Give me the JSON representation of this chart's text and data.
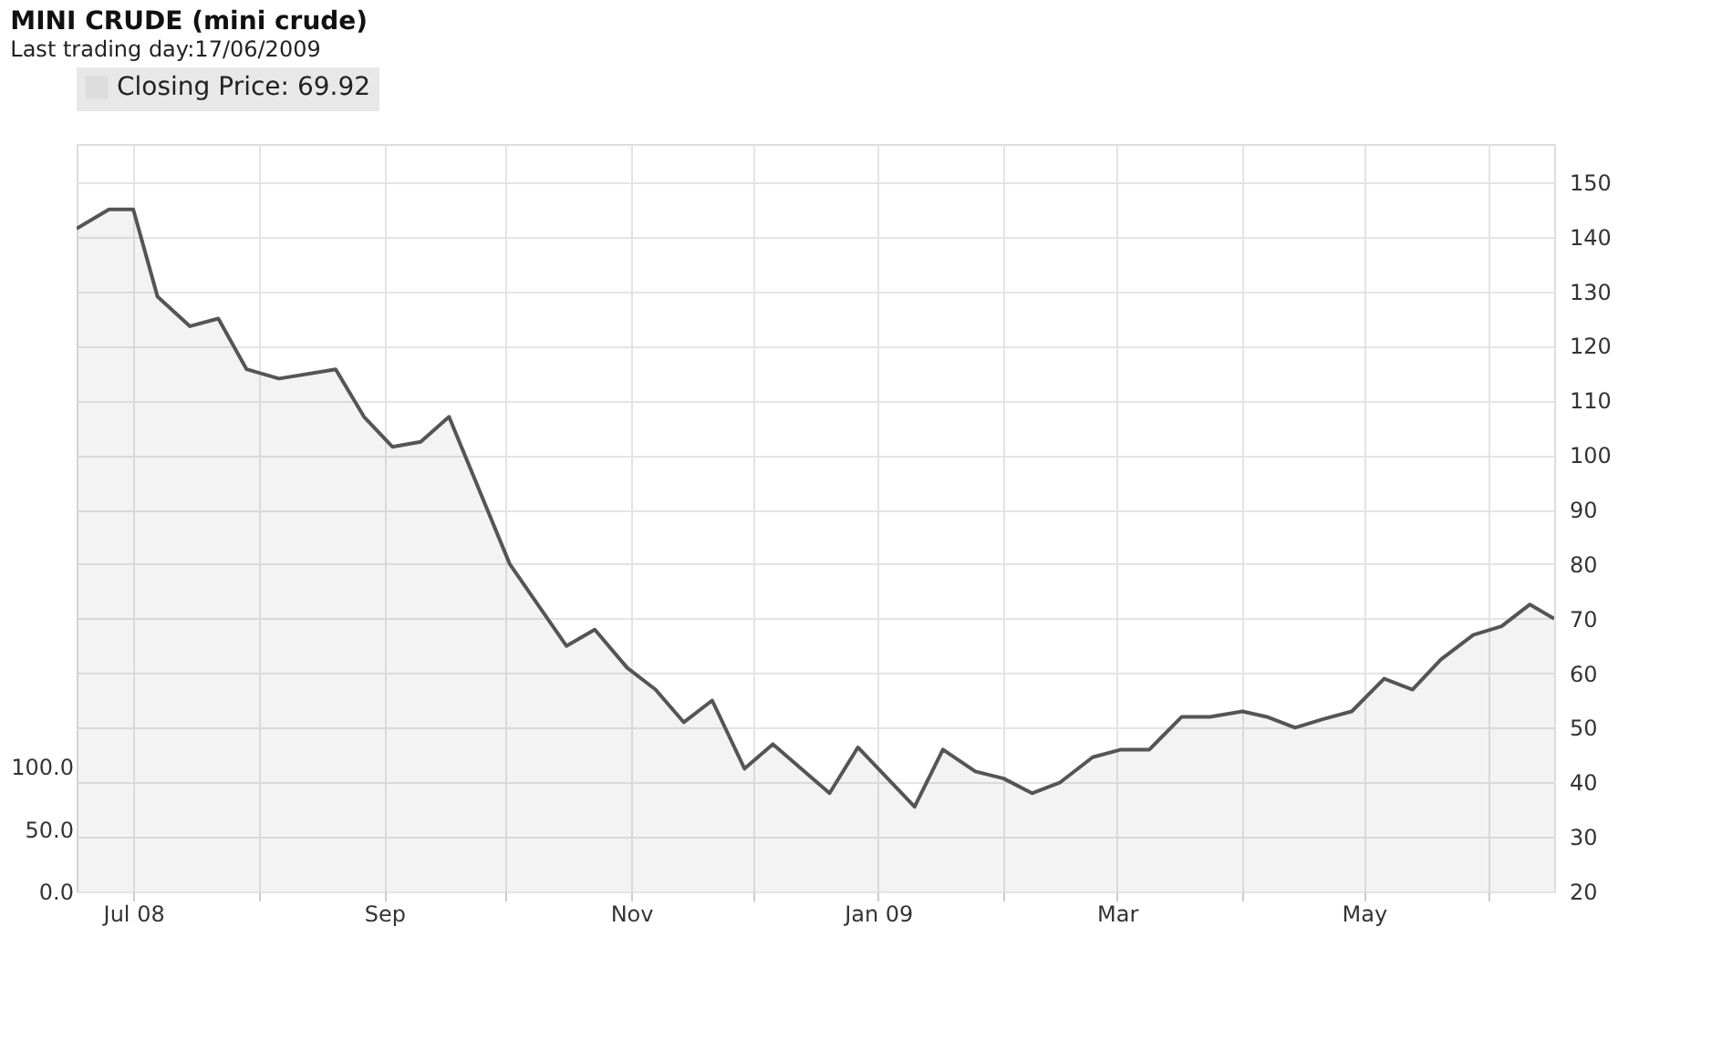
{
  "chart_data": {
    "type": "area",
    "title": "MINI CRUDE (mini crude)",
    "subtitle": "Last trading day:17/06/2009",
    "x": [
      "2008-06-17",
      "2008-06-25",
      "2008-07-01",
      "2008-07-07",
      "2008-07-15",
      "2008-07-22",
      "2008-07-29",
      "2008-08-06",
      "2008-08-20",
      "2008-08-27",
      "2008-09-03",
      "2008-09-10",
      "2008-09-17",
      "2008-10-02",
      "2008-10-16",
      "2008-10-23",
      "2008-10-31",
      "2008-11-07",
      "2008-11-14",
      "2008-11-21",
      "2008-11-29",
      "2008-12-06",
      "2008-12-20",
      "2008-12-27",
      "2009-01-10",
      "2009-01-17",
      "2009-01-25",
      "2009-02-01",
      "2009-02-08",
      "2009-02-15",
      "2009-02-23",
      "2009-03-02",
      "2009-03-09",
      "2009-03-17",
      "2009-03-24",
      "2009-04-01",
      "2009-04-07",
      "2009-04-14",
      "2009-04-21",
      "2009-04-28",
      "2009-05-06",
      "2009-05-13",
      "2009-05-20",
      "2009-05-28",
      "2009-06-04",
      "2009-06-11",
      "2009-06-17"
    ],
    "series": [
      {
        "name": "Closing Price: 69.92",
        "color": "#555555",
        "values": [
          141.5,
          145,
          145,
          129,
          123.6,
          125,
          115.7,
          114,
          115.7,
          107,
          101.5,
          102.4,
          107,
          80,
          65,
          68,
          61,
          57,
          51,
          55,
          42.5,
          47,
          38,
          46.4,
          35.5,
          46,
          42,
          40.7,
          38,
          40,
          44.6,
          46,
          46,
          52,
          52,
          53,
          52,
          50,
          51.6,
          53,
          59,
          57,
          62.5,
          67,
          68.6,
          72.6,
          70
        ]
      }
    ],
    "xlim": [
      "2008-06-17",
      "2009-06-17"
    ],
    "xticks": [
      {
        "value": "2008-07-01",
        "label": "Jul 08"
      },
      {
        "value": "2008-08-01",
        "label": null
      },
      {
        "value": "2008-09-01",
        "label": "Sep"
      },
      {
        "value": "2008-10-01",
        "label": null
      },
      {
        "value": "2008-11-01",
        "label": "Nov"
      },
      {
        "value": "2008-12-01",
        "label": null
      },
      {
        "value": "2009-01-01",
        "label": "Jan 09"
      },
      {
        "value": "2009-02-01",
        "label": null
      },
      {
        "value": "2009-03-01",
        "label": "Mar"
      },
      {
        "value": "2009-04-01",
        "label": null
      },
      {
        "value": "2009-05-01",
        "label": "May"
      },
      {
        "value": "2009-06-01",
        "label": null
      }
    ],
    "ylim": [
      20,
      157
    ],
    "yticks": [
      20,
      30,
      40,
      50,
      60,
      70,
      80,
      90,
      100,
      110,
      120,
      130,
      140,
      150
    ],
    "y2lim": [
      0,
      600
    ],
    "y2ticks": [
      {
        "value": 0,
        "label": "0.0"
      },
      {
        "value": 50,
        "label": "50.0"
      },
      {
        "value": 100,
        "label": "100.0"
      }
    ],
    "grid": true,
    "legend": "top left"
  }
}
